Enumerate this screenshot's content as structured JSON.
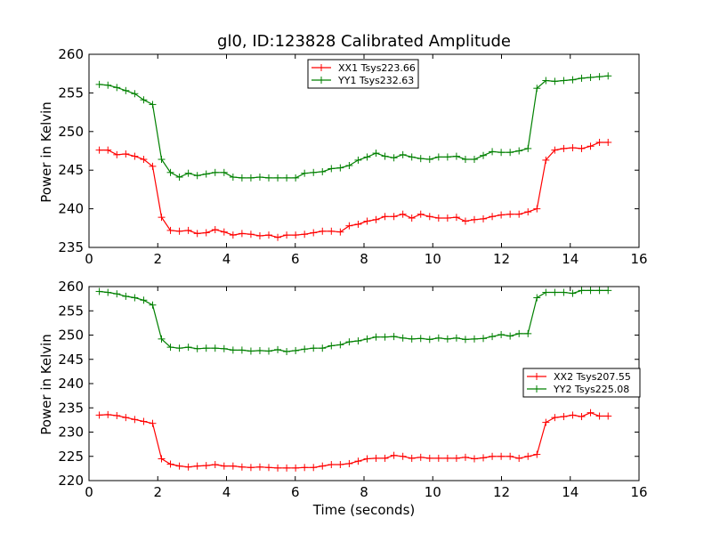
{
  "colors": {
    "red": "#ff0000",
    "green": "#008000",
    "axis": "#000000",
    "background": "#ffffff"
  },
  "chart_data": [
    {
      "type": "line",
      "title": "gl0, ID:123828 Calibrated Amplitude",
      "xlabel": "",
      "ylabel": "Power in Kelvin",
      "xlim": [
        0,
        16
      ],
      "ylim": [
        235,
        260
      ],
      "xticks": [
        0,
        2,
        4,
        6,
        8,
        10,
        12,
        14,
        16
      ],
      "yticks": [
        235,
        240,
        245,
        250,
        255,
        260
      ],
      "grid": false,
      "legend": "top-center",
      "x": [
        0.3,
        0.55,
        0.81,
        1.07,
        1.33,
        1.59,
        1.85,
        2.11,
        2.37,
        2.63,
        2.89,
        3.15,
        3.41,
        3.67,
        3.93,
        4.19,
        4.45,
        4.71,
        4.97,
        5.23,
        5.49,
        5.75,
        6.01,
        6.27,
        6.53,
        6.79,
        7.05,
        7.31,
        7.57,
        7.83,
        8.09,
        8.35,
        8.61,
        8.87,
        9.13,
        9.39,
        9.65,
        9.91,
        10.17,
        10.43,
        10.69,
        10.95,
        11.21,
        11.47,
        11.73,
        11.99,
        12.25,
        12.51,
        12.77,
        13.03,
        13.29,
        13.55,
        13.81,
        14.07,
        14.33,
        14.59,
        14.85,
        15.1
      ],
      "series": [
        {
          "name": "XX1 Tsys223.66",
          "color": "#ff0000",
          "values": [
            247.6,
            247.6,
            247.0,
            247.1,
            246.8,
            246.4,
            245.5,
            238.9,
            237.2,
            237.1,
            237.2,
            236.8,
            236.9,
            237.3,
            237.0,
            236.6,
            236.8,
            236.7,
            236.5,
            236.6,
            236.3,
            236.6,
            236.6,
            236.7,
            236.9,
            237.1,
            237.1,
            237.0,
            237.8,
            238.0,
            238.4,
            238.6,
            239.0,
            239.0,
            239.3,
            238.8,
            239.3,
            239.0,
            238.8,
            238.8,
            238.9,
            238.4,
            238.6,
            238.7,
            239.0,
            239.2,
            239.3,
            239.3,
            239.6,
            240.0,
            246.3,
            247.6,
            247.8,
            247.9,
            247.8,
            248.1,
            248.6,
            248.6
          ]
        },
        {
          "name": "YY1 Tsys232.63",
          "color": "#008000",
          "values": [
            256.1,
            256.0,
            255.7,
            255.3,
            254.9,
            254.1,
            253.5,
            246.4,
            244.7,
            244.1,
            244.6,
            244.3,
            244.5,
            244.7,
            244.7,
            244.1,
            244.0,
            244.0,
            244.1,
            244.0,
            244.0,
            244.0,
            244.0,
            244.6,
            244.7,
            244.8,
            245.2,
            245.3,
            245.6,
            246.3,
            246.7,
            247.2,
            246.8,
            246.6,
            247.0,
            246.7,
            246.5,
            246.4,
            246.7,
            246.7,
            246.8,
            246.4,
            246.4,
            246.9,
            247.4,
            247.3,
            247.3,
            247.5,
            247.8,
            255.6,
            256.6,
            256.5,
            256.6,
            256.7,
            256.9,
            257.0,
            257.1,
            257.2
          ]
        }
      ]
    },
    {
      "type": "line",
      "title": "",
      "xlabel": "Time (seconds)",
      "ylabel": "Power in Kelvin",
      "xlim": [
        0,
        16
      ],
      "ylim": [
        220,
        260
      ],
      "xticks": [
        0,
        2,
        4,
        6,
        8,
        10,
        12,
        14,
        16
      ],
      "yticks": [
        220,
        225,
        230,
        235,
        240,
        245,
        250,
        255,
        260
      ],
      "grid": false,
      "legend": "center-right",
      "x": [
        0.3,
        0.55,
        0.81,
        1.07,
        1.33,
        1.59,
        1.85,
        2.11,
        2.37,
        2.63,
        2.89,
        3.15,
        3.41,
        3.67,
        3.93,
        4.19,
        4.45,
        4.71,
        4.97,
        5.23,
        5.49,
        5.75,
        6.01,
        6.27,
        6.53,
        6.79,
        7.05,
        7.31,
        7.57,
        7.83,
        8.09,
        8.35,
        8.61,
        8.87,
        9.13,
        9.39,
        9.65,
        9.91,
        10.17,
        10.43,
        10.69,
        10.95,
        11.21,
        11.47,
        11.73,
        11.99,
        12.25,
        12.51,
        12.77,
        13.03,
        13.29,
        13.55,
        13.81,
        14.07,
        14.33,
        14.59,
        14.85,
        15.1
      ],
      "series": [
        {
          "name": "XX2 Tsys207.55",
          "color": "#ff0000",
          "values": [
            233.5,
            233.6,
            233.4,
            233.0,
            232.6,
            232.2,
            231.8,
            224.5,
            223.4,
            223.0,
            222.8,
            223.0,
            223.1,
            223.3,
            223.0,
            223.0,
            222.8,
            222.7,
            222.8,
            222.7,
            222.6,
            222.6,
            222.6,
            222.7,
            222.7,
            223.0,
            223.3,
            223.3,
            223.5,
            224.0,
            224.5,
            224.6,
            224.6,
            225.2,
            225.0,
            224.6,
            224.8,
            224.6,
            224.6,
            224.6,
            224.6,
            224.8,
            224.5,
            224.7,
            225.0,
            225.0,
            225.0,
            224.6,
            225.0,
            225.4,
            232.0,
            233.0,
            233.2,
            233.5,
            233.2,
            234.0,
            233.3,
            233.3
          ]
        },
        {
          "name": "YY2 Tsys225.08",
          "color": "#008000",
          "values": [
            259.0,
            258.8,
            258.5,
            258.0,
            257.7,
            257.2,
            256.2,
            249.2,
            247.5,
            247.3,
            247.5,
            247.2,
            247.3,
            247.3,
            247.2,
            246.9,
            246.9,
            246.7,
            246.8,
            246.7,
            247.0,
            246.6,
            246.8,
            247.1,
            247.3,
            247.3,
            247.8,
            248.0,
            248.6,
            248.8,
            249.2,
            249.6,
            249.6,
            249.7,
            249.4,
            249.2,
            249.3,
            249.1,
            249.4,
            249.2,
            249.4,
            249.1,
            249.2,
            249.3,
            249.7,
            250.1,
            249.8,
            250.3,
            250.3,
            257.7,
            258.8,
            258.8,
            258.8,
            258.6,
            259.2,
            259.2,
            259.2,
            259.2
          ]
        }
      ]
    }
  ]
}
